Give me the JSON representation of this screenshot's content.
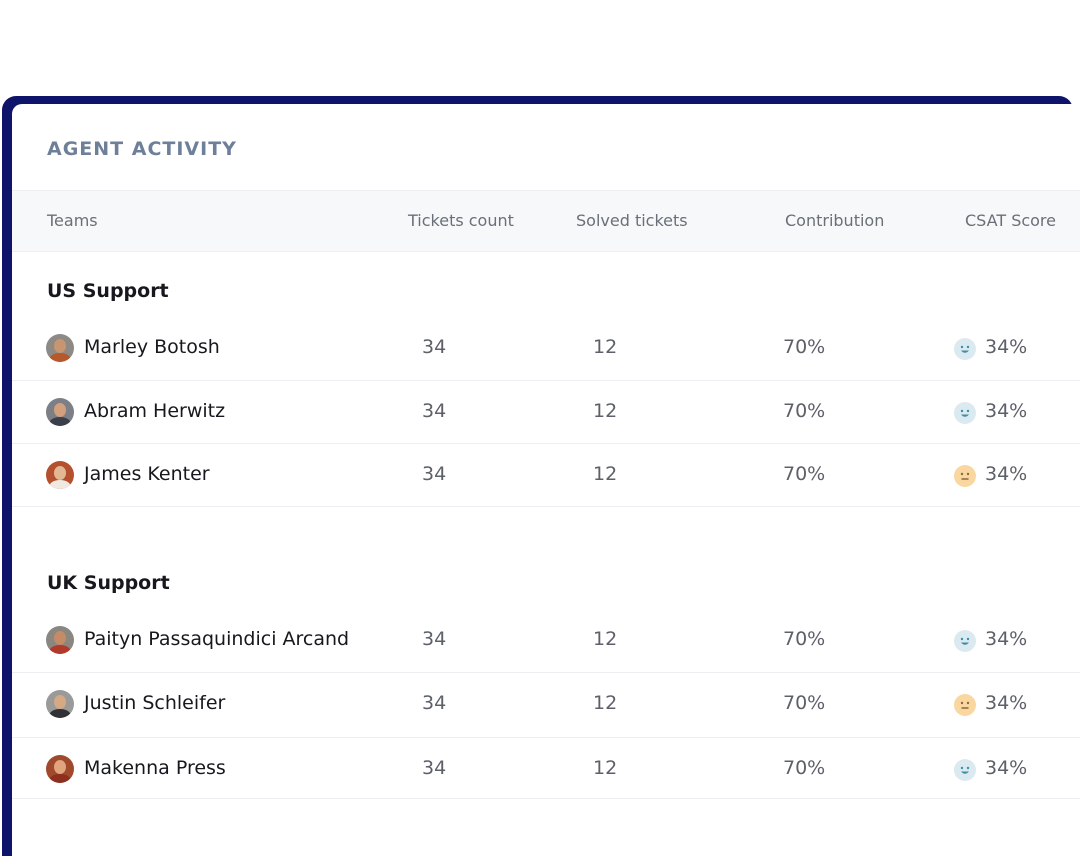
{
  "card": {
    "title": "AGENT ACTIVITY"
  },
  "columns": {
    "teams": "Teams",
    "tickets_count": "Tickets count",
    "solved_tickets": "Solved tickets",
    "contribution": "Contribution",
    "csat": "CSAT Score"
  },
  "colors": {
    "frame": "#0f146b",
    "happy_face_bg": "#dbeaf0",
    "happy_face_fg": "#3e8fa6",
    "neutral_face_bg": "#fad7a0",
    "neutral_face_fg": "#8a6a3a"
  },
  "groups": [
    {
      "title": "US Support",
      "agents": [
        {
          "name": "Marley Botosh",
          "tickets": "34",
          "solved": "12",
          "contribution": "70%",
          "csat": "34%",
          "mood": "happy-face-icon"
        },
        {
          "name": "Abram Herwitz",
          "tickets": "34",
          "solved": "12",
          "contribution": "70%",
          "csat": "34%",
          "mood": "happy-face-icon"
        },
        {
          "name": "James Kenter",
          "tickets": "34",
          "solved": "12",
          "contribution": "70%",
          "csat": "34%",
          "mood": "neutral-face-icon"
        }
      ]
    },
    {
      "title": "UK Support",
      "agents": [
        {
          "name": "Paityn Passaquindici Arcand",
          "tickets": "34",
          "solved": "12",
          "contribution": "70%",
          "csat": "34%",
          "mood": "happy-face-icon"
        },
        {
          "name": "Justin Schleifer",
          "tickets": "34",
          "solved": "12",
          "contribution": "70%",
          "csat": "34%",
          "mood": "neutral-face-icon"
        },
        {
          "name": "Makenna Press",
          "tickets": "34",
          "solved": "12",
          "contribution": "70%",
          "csat": "34%",
          "mood": "happy-face-icon"
        }
      ]
    }
  ]
}
